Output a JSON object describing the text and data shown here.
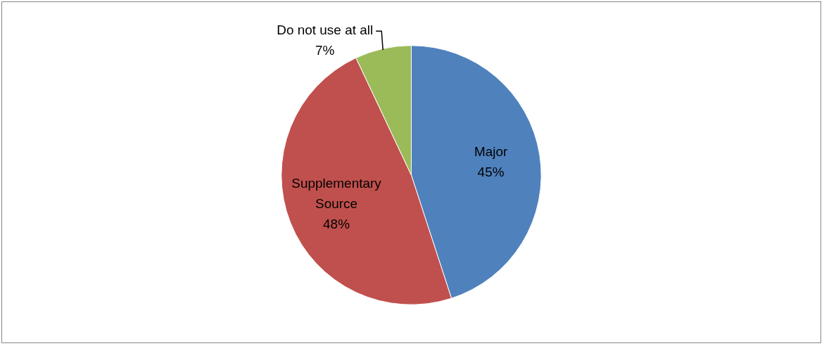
{
  "chart_data": {
    "type": "pie",
    "categories": [
      "Major",
      "Supplementary Source",
      "Do not use at all"
    ],
    "values": [
      45,
      48,
      7
    ],
    "value_labels": [
      "45%",
      "48%",
      "7%"
    ],
    "colors": [
      "#4f81bd",
      "#c0504d",
      "#9bbb59"
    ],
    "legend": false
  }
}
